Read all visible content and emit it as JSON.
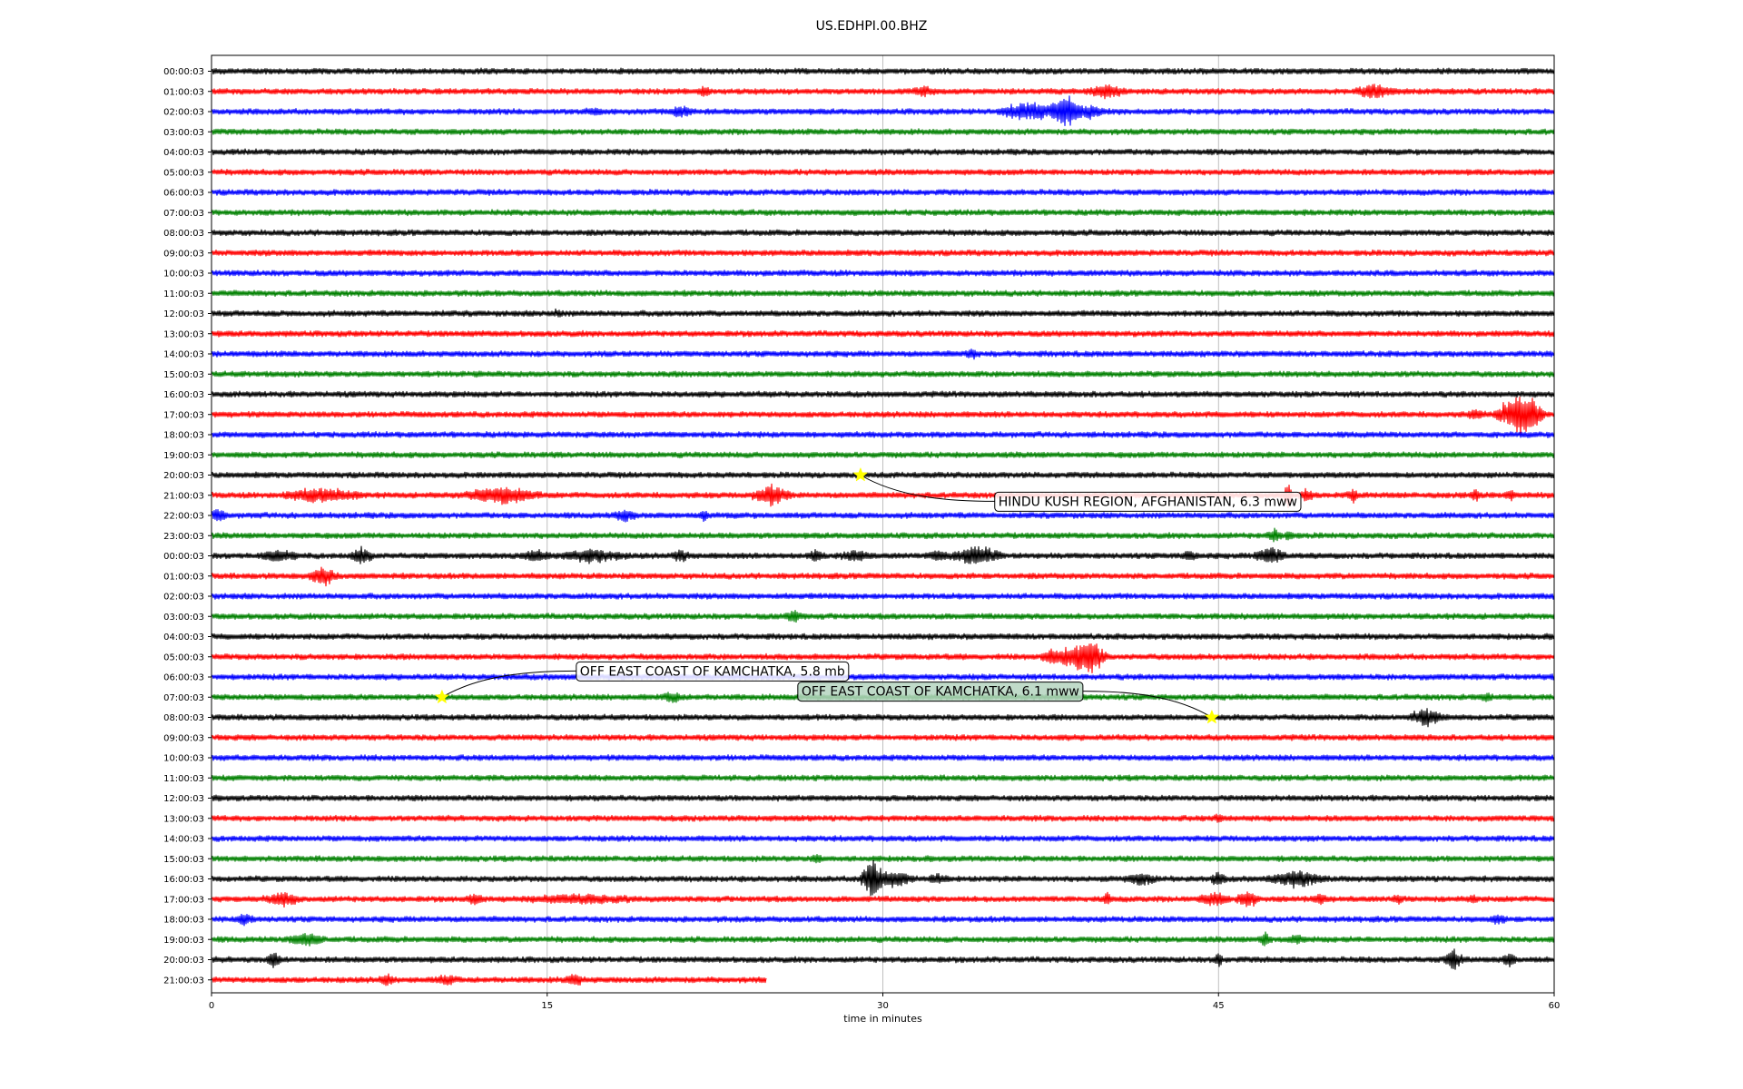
{
  "chart_data": {
    "type": "line",
    "title": "US.EDHPI.00.BHZ",
    "xlabel": "time in minutes",
    "ylabel": "",
    "xlim": [
      0,
      60
    ],
    "x_ticks": [
      0,
      15,
      30,
      45,
      60
    ],
    "grid": "vertical at x ticks",
    "row_colors": [
      "#000000",
      "#ff0000",
      "#0000ff",
      "#008000"
    ],
    "rows": [
      "00:00:03",
      "01:00:03",
      "02:00:03",
      "03:00:03",
      "04:00:03",
      "05:00:03",
      "06:00:03",
      "07:00:03",
      "08:00:03",
      "09:00:03",
      "10:00:03",
      "11:00:03",
      "12:00:03",
      "13:00:03",
      "14:00:03",
      "15:00:03",
      "16:00:03",
      "17:00:03",
      "18:00:03",
      "19:00:03",
      "20:00:03",
      "21:00:03",
      "22:00:03",
      "23:00:03",
      "00:00:03",
      "01:00:03",
      "02:00:03",
      "03:00:03",
      "04:00:03",
      "05:00:03",
      "06:00:03",
      "07:00:03",
      "08:00:03",
      "09:00:03",
      "10:00:03",
      "11:00:03",
      "12:00:03",
      "13:00:03",
      "14:00:03",
      "15:00:03",
      "16:00:03",
      "17:00:03",
      "18:00:03",
      "19:00:03",
      "20:00:03",
      "21:00:03"
    ],
    "last_row_end_minute": 24.8,
    "bursts": [
      [
        1,
        22,
        0.4,
        0.3
      ],
      [
        1,
        31.8,
        0.6,
        0.3
      ],
      [
        1,
        40,
        1.0,
        0.5
      ],
      [
        1,
        52,
        1.0,
        0.6
      ],
      [
        2,
        21,
        0.6,
        0.5
      ],
      [
        2,
        17,
        0.5,
        0.2
      ],
      [
        2,
        36.5,
        1.5,
        0.8
      ],
      [
        2,
        38.2,
        0.8,
        1.6
      ],
      [
        2,
        39.3,
        0.6,
        0.6
      ],
      [
        12,
        15.4,
        0.4,
        0.2
      ],
      [
        14,
        34,
        0.4,
        0.3
      ],
      [
        17,
        56.5,
        0.5,
        0.3
      ],
      [
        17,
        58.4,
        1.2,
        1.8
      ],
      [
        17,
        59,
        0.8,
        0.5
      ],
      [
        21,
        5,
        2.0,
        0.6
      ],
      [
        21,
        13,
        2.0,
        0.7
      ],
      [
        21,
        25,
        1.0,
        0.8
      ],
      [
        21,
        48.1,
        0.2,
        1.4
      ],
      [
        21,
        48.9,
        0.4,
        0.4
      ],
      [
        21,
        51,
        0.3,
        0.5
      ],
      [
        21,
        56.5,
        0.3,
        0.5
      ],
      [
        21,
        58,
        0.3,
        0.4
      ],
      [
        22,
        0.3,
        0.4,
        0.6
      ],
      [
        22,
        18.5,
        0.6,
        0.5
      ],
      [
        22,
        22,
        0.3,
        0.3
      ],
      [
        23,
        47.5,
        0.4,
        0.5
      ],
      [
        23,
        48.2,
        0.3,
        0.3
      ],
      [
        24,
        3,
        1.0,
        0.4
      ],
      [
        24,
        6.7,
        0.6,
        0.6
      ],
      [
        24,
        14.5,
        1.0,
        0.4
      ],
      [
        24,
        17,
        1.8,
        0.5
      ],
      [
        24,
        21,
        0.5,
        0.4
      ],
      [
        24,
        27,
        0.5,
        0.4
      ],
      [
        24,
        28.8,
        0.8,
        0.4
      ],
      [
        24,
        32.5,
        0.6,
        0.4
      ],
      [
        24,
        34.2,
        1.3,
        0.8
      ],
      [
        24,
        43.7,
        0.4,
        0.4
      ],
      [
        24,
        47.3,
        0.8,
        0.8
      ],
      [
        25,
        5,
        0.7,
        0.8
      ],
      [
        27,
        26,
        0.4,
        0.5
      ],
      [
        29,
        37.5,
        0.5,
        0.6
      ],
      [
        29,
        38.5,
        1.0,
        0.9
      ],
      [
        29,
        39.3,
        0.8,
        1.5
      ],
      [
        31,
        20.6,
        0.6,
        0.3
      ],
      [
        31,
        57,
        0.3,
        0.3
      ],
      [
        32,
        54.3,
        0.9,
        0.7
      ],
      [
        37,
        45,
        0.2,
        0.4
      ],
      [
        39,
        27,
        0.3,
        0.3
      ],
      [
        40,
        29.5,
        0.6,
        2.0
      ],
      [
        40,
        30.5,
        1.0,
        0.6
      ],
      [
        40,
        32.5,
        0.6,
        0.4
      ],
      [
        40,
        41.5,
        0.8,
        0.5
      ],
      [
        40,
        45,
        0.4,
        0.6
      ],
      [
        40,
        48.5,
        1.5,
        0.6
      ],
      [
        41,
        3.2,
        1.0,
        0.5
      ],
      [
        41,
        11.8,
        0.4,
        0.5
      ],
      [
        41,
        16.5,
        3.0,
        0.3
      ],
      [
        41,
        40,
        0.3,
        0.4
      ],
      [
        41,
        44.8,
        0.8,
        0.5
      ],
      [
        41,
        46.3,
        0.6,
        0.8
      ],
      [
        41,
        49.5,
        0.4,
        0.4
      ],
      [
        41,
        53,
        0.3,
        0.3
      ],
      [
        41,
        56.4,
        0.3,
        0.3
      ],
      [
        42,
        1.5,
        0.4,
        0.5
      ],
      [
        42,
        57.5,
        0.4,
        0.4
      ],
      [
        43,
        4.2,
        1.0,
        0.5
      ],
      [
        43,
        47.1,
        0.3,
        0.7
      ],
      [
        43,
        48.5,
        0.4,
        0.3
      ],
      [
        44,
        2.8,
        0.4,
        0.6
      ],
      [
        44,
        45,
        0.2,
        0.8
      ],
      [
        44,
        55.5,
        0.5,
        0.9
      ],
      [
        44,
        58,
        0.4,
        0.5
      ],
      [
        45,
        7.8,
        0.4,
        0.4
      ],
      [
        45,
        10.5,
        0.6,
        0.3
      ],
      [
        45,
        16.2,
        0.5,
        0.4
      ]
    ],
    "events": [
      {
        "label": "HINDU KUSH REGION, AFGHANISTAN, 6.3 mww",
        "row": 20,
        "minute": 29.0,
        "box_fill": "#ffffff",
        "box_minute": 35.0,
        "box_row_offset": 1.3,
        "star_color": "#ffff00"
      },
      {
        "label": "OFF EAST COAST OF KAMCHATKA, 5.8 mb",
        "row": 31,
        "minute": 10.3,
        "box_fill": "#ffffff",
        "box_minute": 16.3,
        "box_row_offset": -1.3,
        "star_color": "#ffff00"
      },
      {
        "label": "OFF EAST COAST OF KAMCHATKA, 6.1 mww",
        "row": 32,
        "minute": 44.7,
        "box_fill": "#b5d5bf",
        "box_minute": 26.2,
        "box_row_offset": -1.3,
        "star_color": "#ffff00"
      }
    ]
  }
}
